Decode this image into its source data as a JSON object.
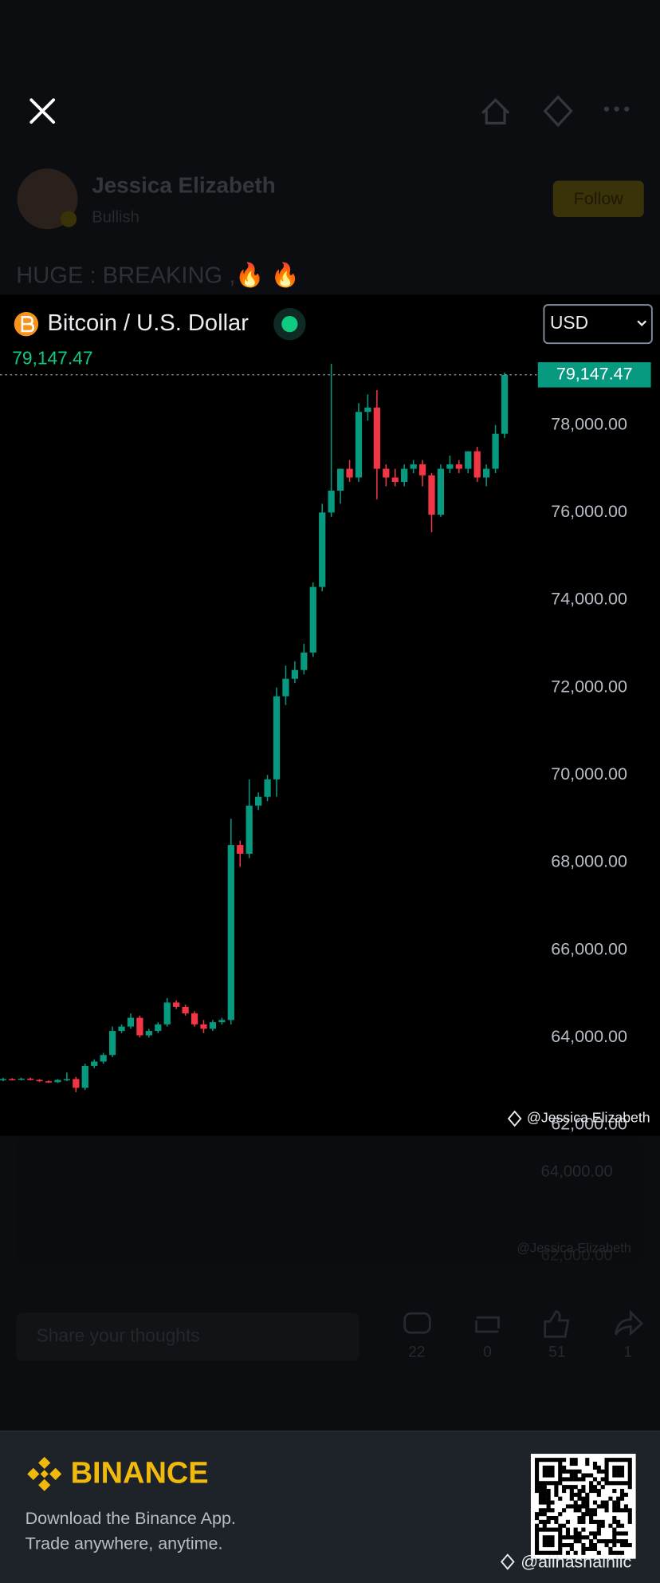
{
  "post": {
    "author": "Jessica Elizabeth",
    "sentiment": "Bullish",
    "follow": "Follow",
    "text": "HUGE : BREAKING ,🔥 🔥"
  },
  "chart_data": {
    "type": "candlestick",
    "title": "Bitcoin / U.S. Dollar",
    "currency": "USD",
    "watermark": "@Jessica Elizabeth",
    "up_color": "#089981",
    "down_color": "#f23645",
    "open": [
      63030,
      63050,
      63040,
      63060,
      63030,
      63000,
      62980,
      63030,
      63050,
      62850,
      63350,
      63450,
      63600,
      64150,
      64250,
      64450,
      64050,
      64150,
      64300,
      64800,
      64700,
      64550,
      64300,
      64200,
      64350,
      64400,
      68400,
      68200,
      69300,
      69500,
      69900,
      71800,
      72200,
      72400,
      72800,
      74300,
      76000,
      76500,
      77000,
      76800,
      78300,
      78400,
      77000,
      76800,
      76700,
      77000,
      77100,
      76850,
      75950,
      77000,
      77100,
      77000,
      77400,
      76800,
      77000,
      77800
    ],
    "high": [
      63080,
      63070,
      63080,
      63080,
      63050,
      63020,
      63050,
      63200,
      63100,
      63400,
      63500,
      63650,
      64250,
      64300,
      64550,
      64500,
      64200,
      64350,
      64900,
      64850,
      64750,
      64600,
      64400,
      64400,
      64450,
      69000,
      68500,
      69900,
      69600,
      70000,
      72000,
      72500,
      72600,
      73000,
      74400,
      76200,
      79400,
      77000,
      77200,
      78500,
      78700,
      78800,
      77100,
      77000,
      77100,
      77200,
      77200,
      76900,
      77100,
      77300,
      77200,
      77400,
      77500,
      77100,
      78000,
      79200
    ],
    "low": [
      63000,
      63020,
      63020,
      63020,
      62980,
      62960,
      62960,
      63000,
      62750,
      62800,
      63300,
      63400,
      63550,
      64100,
      64200,
      64000,
      64000,
      64100,
      64250,
      64650,
      64500,
      64250,
      64100,
      64150,
      64300,
      64300,
      67900,
      68100,
      69200,
      69400,
      69500,
      71600,
      72100,
      72300,
      72700,
      74200,
      75900,
      76200,
      76700,
      76700,
      78100,
      76300,
      76600,
      76600,
      76600,
      76900,
      76600,
      75550,
      75900,
      76900,
      76900,
      76900,
      76700,
      76600,
      76900,
      77700
    ],
    "close": [
      63050,
      63040,
      63060,
      63030,
      63000,
      62980,
      63030,
      63050,
      62850,
      63350,
      63450,
      63600,
      64150,
      64250,
      64450,
      64050,
      64150,
      64300,
      64800,
      64700,
      64550,
      64300,
      64200,
      64350,
      64400,
      68400,
      68200,
      69300,
      69500,
      69900,
      71800,
      72200,
      72400,
      72800,
      74300,
      76000,
      76500,
      77000,
      76800,
      78300,
      78400,
      77000,
      76800,
      76700,
      77000,
      77100,
      76850,
      75950,
      77000,
      77100,
      77000,
      77400,
      76800,
      77000,
      77800,
      79147.47
    ],
    "ylim": [
      61800,
      81000
    ],
    "yticks": [
      {
        "value": 62000,
        "label": "62,000.00"
      },
      {
        "value": 64000,
        "label": "64,000.00"
      },
      {
        "value": 66000,
        "label": "66,000.00"
      },
      {
        "value": 68000,
        "label": "68,000.00"
      },
      {
        "value": 70000,
        "label": "70,000.00"
      },
      {
        "value": 72000,
        "label": "72,000.00"
      },
      {
        "value": 74000,
        "label": "74,000.00"
      },
      {
        "value": 76000,
        "label": "76,000.00"
      },
      {
        "value": 78000,
        "label": "78,000.00"
      }
    ],
    "price_line": {
      "value": 79147.47,
      "label": "79,147.47"
    }
  },
  "background_card": {
    "tick_labels": [
      "64,000.00",
      "62,000.00"
    ],
    "watermark": "@Jessica Elizabeth"
  },
  "actions": {
    "placeholder": "Share your thoughts",
    "counts": [
      "22",
      "0",
      "51",
      "1"
    ]
  },
  "footer": {
    "brand": "BINANCE",
    "line1": "Download the Binance App.",
    "line2": "Trade anywhere, anytime.",
    "handle": "@alihasnainllc"
  }
}
